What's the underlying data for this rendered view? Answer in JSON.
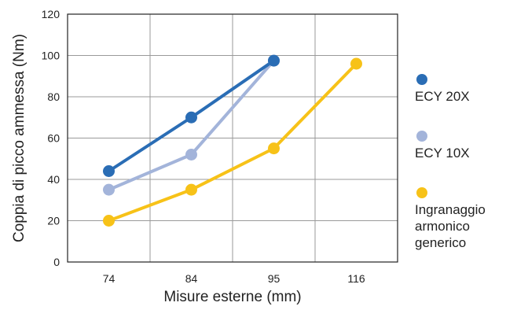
{
  "chart_data": {
    "type": "line",
    "categories": [
      "74",
      "84",
      "95",
      "116"
    ],
    "series": [
      {
        "name": "ECY 20X",
        "color": "#2a6db5",
        "values": [
          44,
          70,
          97.5,
          null
        ]
      },
      {
        "name": "ECY 10X",
        "color": "#a3b4da",
        "values": [
          35,
          52,
          97.5,
          null
        ]
      },
      {
        "name": "Ingranaggio\narmonico\ngenerico",
        "color": "#f7c218",
        "values": [
          20,
          35,
          55,
          96
        ]
      }
    ],
    "xlabel": "Misure esterne (mm)",
    "ylabel": "Coppia di picco ammessa (Nm)",
    "ylim": [
      0,
      120
    ],
    "yticks": [
      0,
      20,
      40,
      60,
      80,
      100,
      120
    ],
    "grid": true,
    "legend_position": "right"
  }
}
